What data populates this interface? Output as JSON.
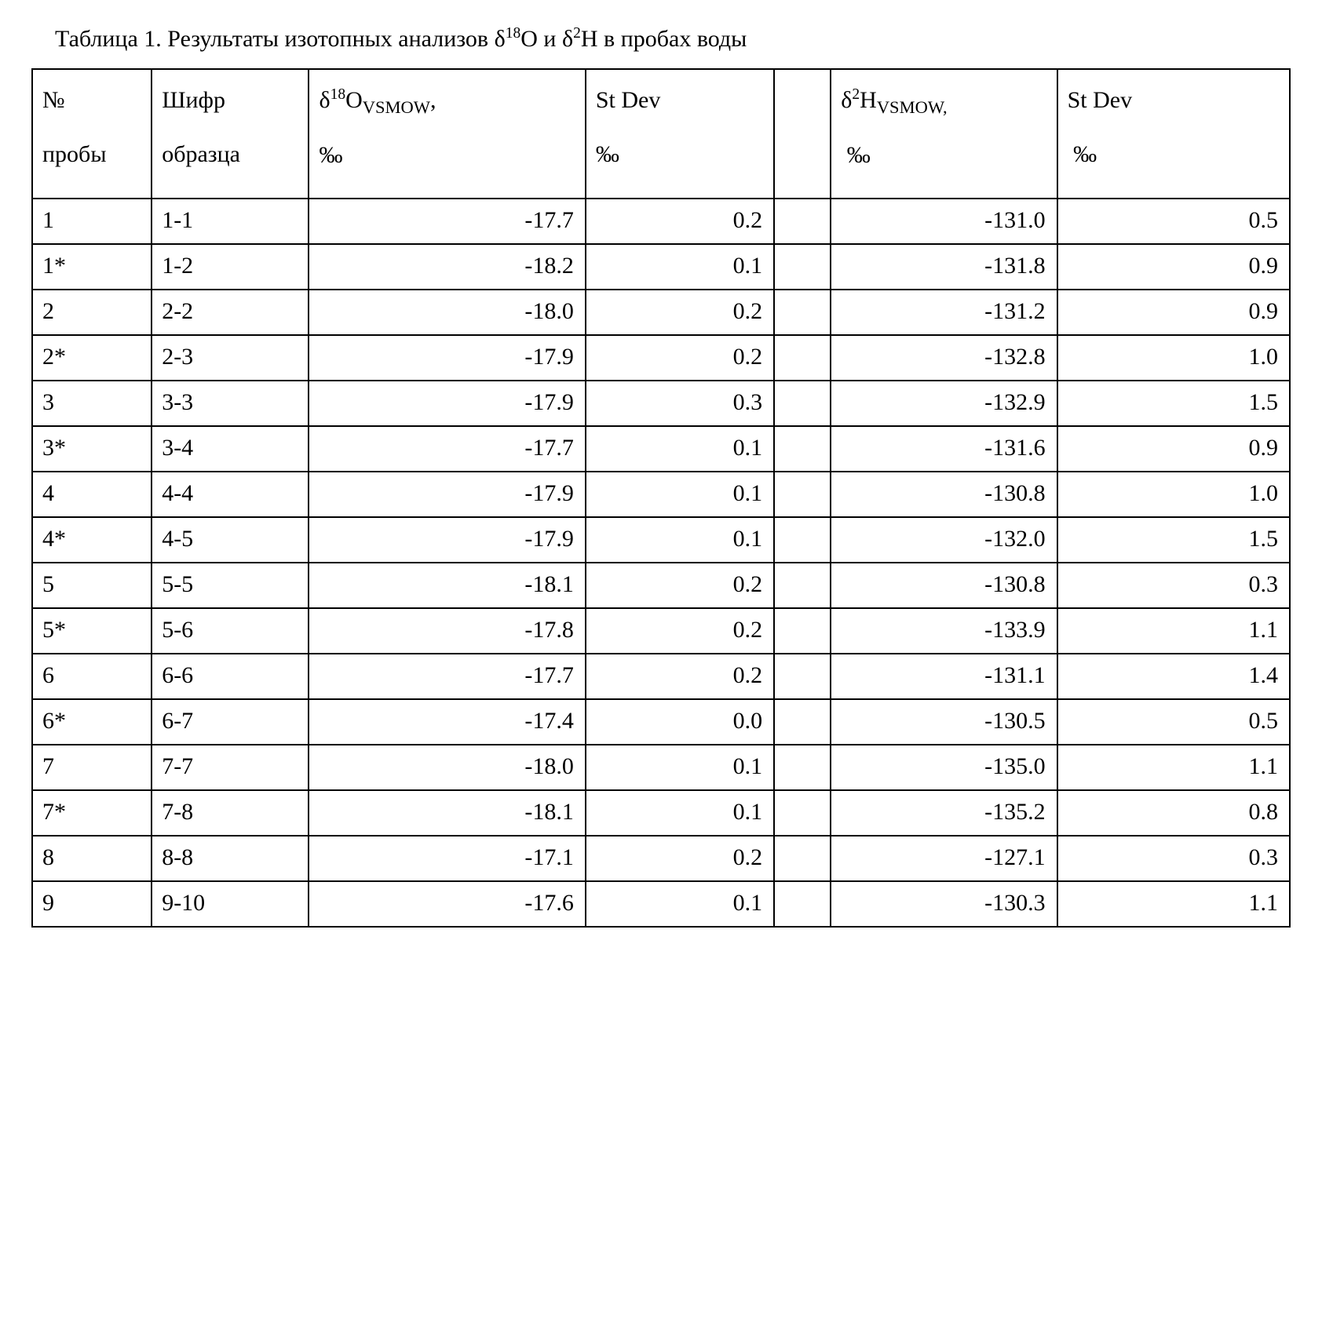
{
  "caption_plain": "Таблица 1. Результаты изотопных анализов δ18O и δ2H в пробах воды",
  "caption_html": "Таблица 1. Результаты изотопных анализов δ<sup>18</sup>O и δ<sup>2</sup>H в пробах воды",
  "table": {
    "type": "table",
    "border_color": "#000000",
    "background_color": "#ffffff",
    "font_family": "Times New Roman",
    "font_size_pt": 14,
    "columns": [
      {
        "key": "sample_no",
        "label_html": "№<br>пробы",
        "align": "left",
        "width_pct": 9.5
      },
      {
        "key": "code",
        "label_html": "Шифр<br>образца",
        "align": "left",
        "width_pct": 12.5
      },
      {
        "key": "d18o",
        "label_html": "δ<sup>18</sup>O<sub>VSMOW</sub>,<br>‰",
        "align": "right",
        "width_pct": 22
      },
      {
        "key": "sd_o",
        "label_html": "St Dev<br>‰",
        "align": "right",
        "width_pct": 15
      },
      {
        "key": "spacer",
        "label_html": "",
        "align": "left",
        "width_pct": 4.5
      },
      {
        "key": "d2h",
        "label_html": "δ<sup>2</sup>H<sub>VSMOW,</sub><br>&nbsp;‰",
        "align": "right",
        "width_pct": 18
      },
      {
        "key": "sd_h",
        "label_html": "St Dev<br>&nbsp;‰",
        "align": "right",
        "width_pct": 18.5
      }
    ],
    "rows": [
      {
        "sample_no": "1",
        "code": "1-1",
        "d18o": "-17.7",
        "sd_o": "0.2",
        "spacer": "",
        "d2h": "-131.0",
        "sd_h": "0.5"
      },
      {
        "sample_no": "1*",
        "code": "1-2",
        "d18o": "-18.2",
        "sd_o": "0.1",
        "spacer": "",
        "d2h": "-131.8",
        "sd_h": "0.9"
      },
      {
        "sample_no": "2",
        "code": "2-2",
        "d18o": "-18.0",
        "sd_o": "0.2",
        "spacer": "",
        "d2h": "-131.2",
        "sd_h": "0.9"
      },
      {
        "sample_no": "2*",
        "code": "2-3",
        "d18o": "-17.9",
        "sd_o": "0.2",
        "spacer": "",
        "d2h": "-132.8",
        "sd_h": "1.0"
      },
      {
        "sample_no": "3",
        "code": "3-3",
        "d18o": "-17.9",
        "sd_o": "0.3",
        "spacer": "",
        "d2h": "-132.9",
        "sd_h": "1.5"
      },
      {
        "sample_no": "3*",
        "code": "3-4",
        "d18o": "-17.7",
        "sd_o": "0.1",
        "spacer": "",
        "d2h": "-131.6",
        "sd_h": "0.9"
      },
      {
        "sample_no": "4",
        "code": "4-4",
        "d18o": "-17.9",
        "sd_o": "0.1",
        "spacer": "",
        "d2h": "-130.8",
        "sd_h": "1.0"
      },
      {
        "sample_no": "4*",
        "code": "4-5",
        "d18o": "-17.9",
        "sd_o": "0.1",
        "spacer": "",
        "d2h": "-132.0",
        "sd_h": "1.5"
      },
      {
        "sample_no": "5",
        "code": "5-5",
        "d18o": "-18.1",
        "sd_o": "0.2",
        "spacer": "",
        "d2h": "-130.8",
        "sd_h": "0.3"
      },
      {
        "sample_no": "5*",
        "code": "5-6",
        "d18o": "-17.8",
        "sd_o": "0.2",
        "spacer": "",
        "d2h": "-133.9",
        "sd_h": "1.1"
      },
      {
        "sample_no": "6",
        "code": "6-6",
        "d18o": "-17.7",
        "sd_o": "0.2",
        "spacer": "",
        "d2h": "-131.1",
        "sd_h": "1.4"
      },
      {
        "sample_no": "6*",
        "code": "6-7",
        "d18o": "-17.4",
        "sd_o": "0.0",
        "spacer": "",
        "d2h": "-130.5",
        "sd_h": "0.5"
      },
      {
        "sample_no": "7",
        "code": "7-7",
        "d18o": "-18.0",
        "sd_o": "0.1",
        "spacer": "",
        "d2h": "-135.0",
        "sd_h": "1.1"
      },
      {
        "sample_no": "7*",
        "code": "7-8",
        "d18o": "-18.1",
        "sd_o": "0.1",
        "spacer": "",
        "d2h": "-135.2",
        "sd_h": "0.8"
      },
      {
        "sample_no": "8",
        "code": "8-8",
        "d18o": "-17.1",
        "sd_o": "0.2",
        "spacer": "",
        "d2h": "-127.1",
        "sd_h": "0.3"
      },
      {
        "sample_no": "9",
        "code": "9-10",
        "d18o": "-17.6",
        "sd_o": "0.1",
        "spacer": "",
        "d2h": "-130.3",
        "sd_h": "1.1"
      }
    ]
  }
}
